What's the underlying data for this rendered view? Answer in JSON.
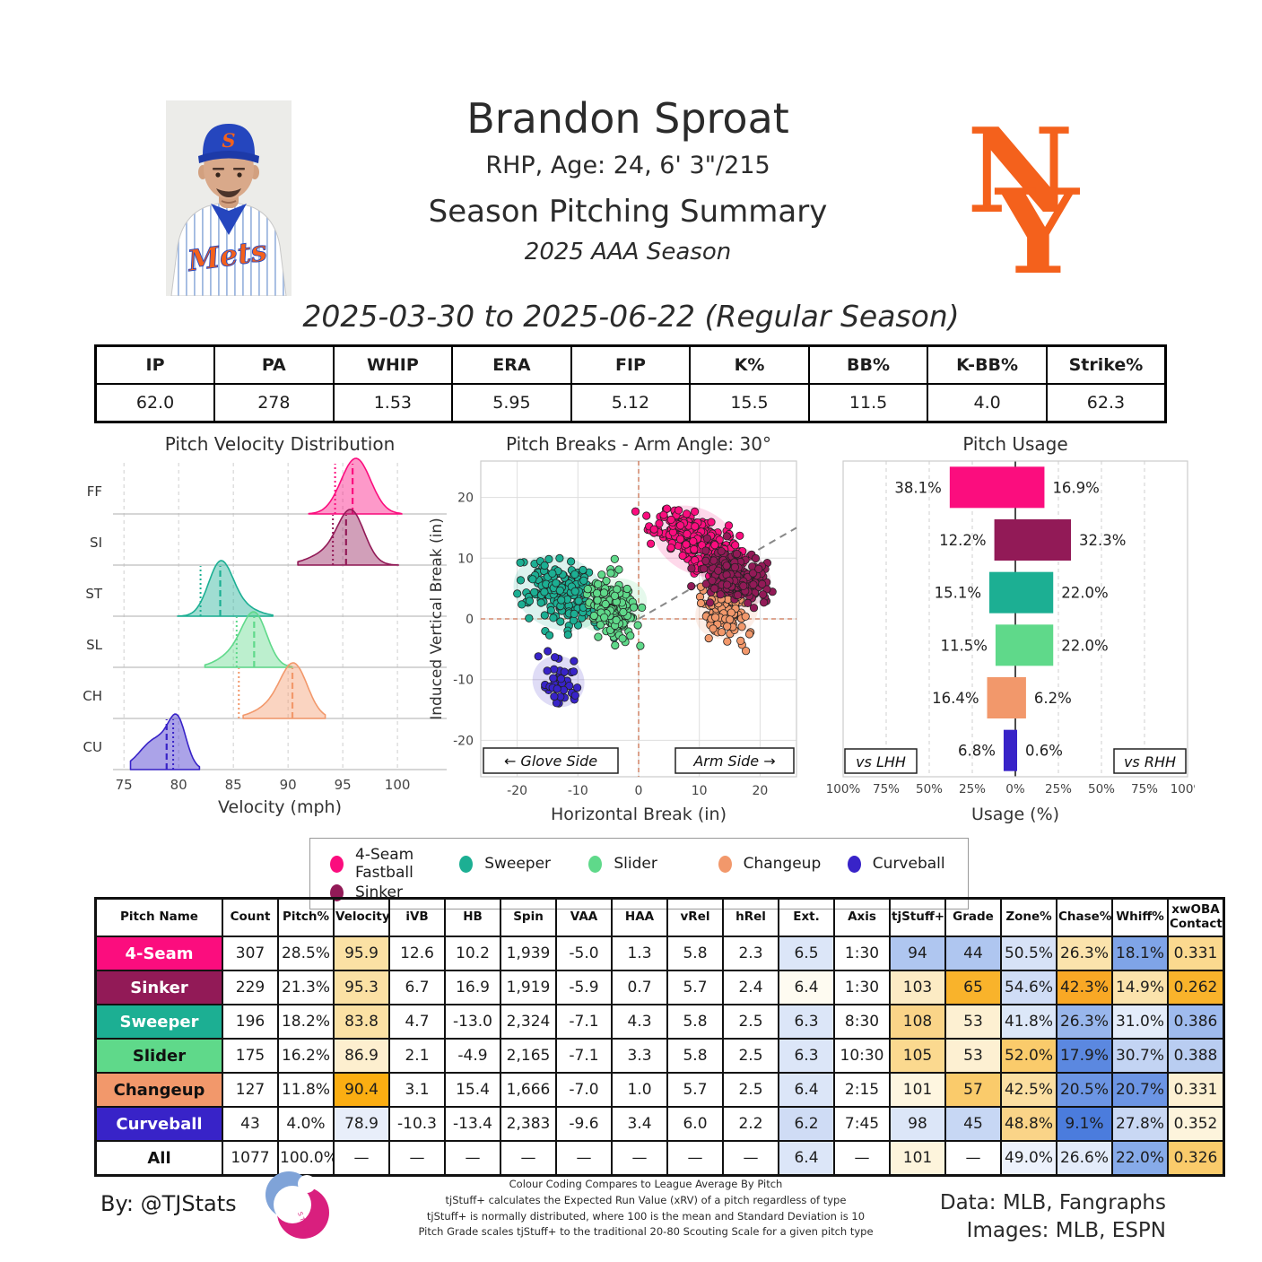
{
  "header": {
    "player_name": "Brandon Sproat",
    "player_details": "RHP, Age: 24, 6' 3\"/215",
    "summary_title": "Season Pitching Summary",
    "season_label": "2025 AAA Season",
    "date_range": "2025-03-30 to 2025-06-22 (Regular Season)",
    "team": "New York Mets"
  },
  "summary_table": {
    "columns": [
      "IP",
      "PA",
      "WHIP",
      "ERA",
      "FIP",
      "K%",
      "BB%",
      "K-BB%",
      "Strike%"
    ],
    "values": [
      "62.0",
      "278",
      "1.53",
      "5.95",
      "5.12",
      "15.5",
      "11.5",
      "4.0",
      "62.3"
    ]
  },
  "colors": {
    "fourseam": "#FB0D7E",
    "sinker": "#921A57",
    "sweeper": "#1CAF93",
    "slider": "#5FD98A",
    "changeup": "#F2986B",
    "curveball": "#3823C8",
    "mets_orange": "#F4611C",
    "crosshair": "#C9714F",
    "grid": "#d6d6d6"
  },
  "chart_data": [
    {
      "type": "ridgeline",
      "title": "Pitch Velocity Distribution",
      "xlabel": "Velocity (mph)",
      "xlim": [
        74,
        104.5
      ],
      "xticks": [
        75,
        80,
        85,
        90,
        95,
        100
      ],
      "rows": [
        {
          "label": "FF",
          "pitch": "4-Seam Fastball",
          "color": "#FB0D7E",
          "mean": 95.9,
          "league_avg": 94.3,
          "range": [
            91.9,
            100.4
          ],
          "components": [
            {
              "x": 96.2,
              "sd": 1.35,
              "a": 1
            }
          ]
        },
        {
          "label": "SI",
          "pitch": "Sinker",
          "color": "#921A57",
          "mean": 95.3,
          "league_avg": 94.1,
          "range": [
            90.9,
            100.1
          ],
          "components": [
            {
              "x": 95.8,
              "sd": 1.2,
              "a": 1
            },
            {
              "x": 93.8,
              "sd": 1.8,
              "a": 0.25
            }
          ]
        },
        {
          "label": "ST",
          "pitch": "Sweeper",
          "color": "#1CAF93",
          "mean": 83.8,
          "league_avg": 82.0,
          "range": [
            79.9,
            88.6
          ],
          "components": [
            {
              "x": 83.8,
              "sd": 1.1,
              "a": 1
            },
            {
              "x": 85.5,
              "sd": 1.5,
              "a": 0.2
            }
          ]
        },
        {
          "label": "SL",
          "pitch": "Slider",
          "color": "#5FD98A",
          "mean": 86.9,
          "league_avg": 85.3,
          "range": [
            82.4,
            90.4
          ],
          "components": [
            {
              "x": 87.0,
              "sd": 1.1,
              "a": 1
            },
            {
              "x": 85.5,
              "sd": 1.6,
              "a": 0.35
            }
          ]
        },
        {
          "label": "CH",
          "pitch": "Changeup",
          "color": "#F2986B",
          "mean": 90.4,
          "league_avg": 85.5,
          "range": [
            85.9,
            93.4
          ],
          "components": [
            {
              "x": 90.6,
              "sd": 1.2,
              "a": 1
            },
            {
              "x": 89.0,
              "sd": 1.8,
              "a": 0.3
            }
          ]
        },
        {
          "label": "CU",
          "pitch": "Curveball",
          "color": "#3823C8",
          "mean": 78.9,
          "league_avg": 79.5,
          "range": [
            75.6,
            81.9
          ],
          "components": [
            {
              "x": 78.0,
              "sd": 1.5,
              "a": 0.75
            },
            {
              "x": 79.9,
              "sd": 0.8,
              "a": 1
            }
          ]
        }
      ]
    },
    {
      "type": "scatter",
      "title": "Pitch Breaks - Arm Angle: 30°",
      "xlabel": "Horizontal Break (in)",
      "ylabel": "Induced Vertical Break (in)",
      "xlim": [
        -26,
        26
      ],
      "ylim": [
        -26,
        26
      ],
      "ticks": [
        -20,
        -10,
        0,
        10,
        20
      ],
      "arm_angle_deg": 30,
      "glove_side_label": "← Glove Side",
      "arm_side_label": "Arm Side →",
      "clusters": [
        {
          "pitch": "4-Seam",
          "color": "#FB0D7E",
          "n": 307,
          "cx": 9.5,
          "cy": 12.8,
          "sx": 3.3,
          "sy": 2.3,
          "rho": -0.55
        },
        {
          "pitch": "Sweeper",
          "color": "#1CAF93",
          "n": 196,
          "cx": -13.0,
          "cy": 4.3,
          "sx": 3.4,
          "sy": 2.6,
          "rho": -0.25
        },
        {
          "pitch": "Slider",
          "color": "#5FD98A",
          "n": 175,
          "cx": -4.5,
          "cy": 2.2,
          "sx": 1.9,
          "sy": 2.6,
          "rho": -0.2
        },
        {
          "pitch": "Changeup",
          "color": "#F2986B",
          "n": 127,
          "cx": 14.5,
          "cy": 1.2,
          "sx": 1.9,
          "sy": 2.3,
          "rho": -0.2
        },
        {
          "pitch": "Sinker",
          "color": "#921A57",
          "n": 229,
          "cx": 16.0,
          "cy": 7.0,
          "sx": 2.6,
          "sy": 2.1,
          "rho": -0.3
        },
        {
          "pitch": "Curveball",
          "color": "#3823C8",
          "n": 43,
          "cx": -13.2,
          "cy": -10.3,
          "sx": 1.9,
          "sy": 1.8,
          "rho": -0.3
        }
      ]
    },
    {
      "type": "diverging_bar",
      "title": "Pitch Usage",
      "xlabel": "Usage (%)",
      "xtick_labels": [
        "100%",
        "75%",
        "50%",
        "25%",
        "0%",
        "25%",
        "50%",
        "75%",
        "100%"
      ],
      "left_box_label": "vs LHH",
      "right_box_label": "vs RHH",
      "rows": [
        {
          "pitch": "4-Seam",
          "color": "#FB0D7E",
          "lhh": 38.1,
          "rhh": 16.9
        },
        {
          "pitch": "Sinker",
          "color": "#921A57",
          "lhh": 12.2,
          "rhh": 32.3
        },
        {
          "pitch": "Sweeper",
          "color": "#1CAF93",
          "lhh": 15.1,
          "rhh": 22.0
        },
        {
          "pitch": "Slider",
          "color": "#5FD98A",
          "lhh": 11.5,
          "rhh": 22.0
        },
        {
          "pitch": "Changeup",
          "color": "#F2986B",
          "lhh": 16.4,
          "rhh": 6.2
        },
        {
          "pitch": "Curveball",
          "color": "#3823C8",
          "lhh": 6.8,
          "rhh": 0.6
        }
      ]
    }
  ],
  "legend": {
    "items": [
      {
        "label": "4-Seam Fastball",
        "color": "#FB0D7E"
      },
      {
        "label": "Sweeper",
        "color": "#1CAF93"
      },
      {
        "label": "Slider",
        "color": "#5FD98A"
      },
      {
        "label": "Changeup",
        "color": "#F2986B"
      },
      {
        "label": "Curveball",
        "color": "#3823C8"
      },
      {
        "label": "Sinker",
        "color": "#921A57"
      }
    ]
  },
  "pitch_table": {
    "headers": [
      "Pitch Name",
      "Count",
      "Pitch%",
      "Velocity",
      "iVB",
      "HB",
      "Spin",
      "VAA",
      "HAA",
      "vRel",
      "hRel",
      "Ext.",
      "Axis",
      "tjStuff+",
      "Grade",
      "Zone%",
      "Chase%",
      "Whiff%",
      "xwOBA\nContact"
    ],
    "rows": [
      {
        "name": "4-Seam",
        "bg": "#FB0D7E",
        "fg": "#ffffff",
        "cells": [
          [
            "307"
          ],
          [
            "28.5%"
          ],
          [
            "95.9",
            "#FBE1A4"
          ],
          [
            "12.6"
          ],
          [
            "10.2"
          ],
          [
            "1,939"
          ],
          [
            "-5.0"
          ],
          [
            "1.3"
          ],
          [
            "5.8"
          ],
          [
            "2.3"
          ],
          [
            "6.5",
            "#DCE6F8"
          ],
          [
            "1:30"
          ],
          [
            "94",
            "#AFC6F0"
          ],
          [
            "44",
            "#AFC6F0"
          ],
          [
            "50.5%",
            "#D7E2F7"
          ],
          [
            "26.3%",
            "#FBE3AC"
          ],
          [
            "18.1%",
            "#7FA4E7"
          ],
          [
            "0.331",
            "#FBD98F"
          ]
        ]
      },
      {
        "name": "Sinker",
        "bg": "#921A57",
        "fg": "#ffffff",
        "cells": [
          [
            "229"
          ],
          [
            "21.3%"
          ],
          [
            "95.3",
            "#FBE1A4"
          ],
          [
            "6.7"
          ],
          [
            "16.9"
          ],
          [
            "1,919"
          ],
          [
            "-5.9"
          ],
          [
            "0.7"
          ],
          [
            "5.7"
          ],
          [
            "2.4"
          ],
          [
            "6.4",
            "#FEFBF1"
          ],
          [
            "1:30"
          ],
          [
            "103",
            "#FCEBC4"
          ],
          [
            "65",
            "#F9B32B"
          ],
          [
            "54.6%",
            "#D0DDF6"
          ],
          [
            "42.3%",
            "#F9A825"
          ],
          [
            "14.9%",
            "#FBE3AC"
          ],
          [
            "0.262",
            "#F9B32B"
          ]
        ]
      },
      {
        "name": "Sweeper",
        "bg": "#1CAF93",
        "fg": "#ffffff",
        "cells": [
          [
            "196"
          ],
          [
            "18.2%"
          ],
          [
            "83.8",
            "#FBE1A4"
          ],
          [
            "4.7"
          ],
          [
            "-13.0"
          ],
          [
            "2,324"
          ],
          [
            "-7.1"
          ],
          [
            "4.3"
          ],
          [
            "5.8"
          ],
          [
            "2.5"
          ],
          [
            "6.3",
            "#DCE6F8"
          ],
          [
            "8:30"
          ],
          [
            "108",
            "#FAD488"
          ],
          [
            "53",
            "#FDF0D2"
          ],
          [
            "41.8%",
            "#DCE7F8"
          ],
          [
            "26.3%",
            "#98B6EC"
          ],
          [
            "31.0%",
            "#E4ECFA"
          ],
          [
            "0.386",
            "#9FBBEE"
          ]
        ]
      },
      {
        "name": "Slider",
        "bg": "#5FD98A",
        "fg": "#111111",
        "cells": [
          [
            "175"
          ],
          [
            "16.2%"
          ],
          [
            "86.9",
            "#FDEFCF"
          ],
          [
            "2.1"
          ],
          [
            "-4.9"
          ],
          [
            "2,165"
          ],
          [
            "-7.1"
          ],
          [
            "3.3"
          ],
          [
            "5.8"
          ],
          [
            "2.5"
          ],
          [
            "6.3",
            "#DCE6F8"
          ],
          [
            "10:30"
          ],
          [
            "105",
            "#FBD98F"
          ],
          [
            "53",
            "#FDF0D2"
          ],
          [
            "52.0%",
            "#FACB6B"
          ],
          [
            "17.9%",
            "#5B88E0"
          ],
          [
            "30.7%",
            "#C3D4F3"
          ],
          [
            "0.388",
            "#B9CDF1"
          ]
        ]
      },
      {
        "name": "Changeup",
        "bg": "#F2986B",
        "fg": "#111111",
        "cells": [
          [
            "127"
          ],
          [
            "11.8%"
          ],
          [
            "90.4",
            "#FBAE12"
          ],
          [
            "3.1"
          ],
          [
            "15.4"
          ],
          [
            "1,666"
          ],
          [
            "-7.0"
          ],
          [
            "1.0"
          ],
          [
            "5.7"
          ],
          [
            "2.5"
          ],
          [
            "6.4",
            "#DCE6F8"
          ],
          [
            "2:15"
          ],
          [
            "101",
            "#FEF6E0"
          ],
          [
            "57",
            "#FACB6B"
          ],
          [
            "42.5%",
            "#FBDFA2"
          ],
          [
            "20.5%",
            "#6C95E4"
          ],
          [
            "20.7%",
            "#6C95E4"
          ],
          [
            "0.331",
            "#FDF0D2"
          ]
        ]
      },
      {
        "name": "Curveball",
        "bg": "#3823C8",
        "fg": "#ffffff",
        "cells": [
          [
            "43"
          ],
          [
            "4.0%"
          ],
          [
            "78.9",
            "#E8EEFA"
          ],
          [
            "-10.3"
          ],
          [
            "-13.4"
          ],
          [
            "2,383"
          ],
          [
            "-9.6"
          ],
          [
            "3.4"
          ],
          [
            "6.0"
          ],
          [
            "2.2"
          ],
          [
            "6.2",
            "#CFDCF5"
          ],
          [
            "7:45"
          ],
          [
            "98",
            "#DCE6F8"
          ],
          [
            "45",
            "#C7D7F4"
          ],
          [
            "48.8%",
            "#FAD488"
          ],
          [
            "9.1%",
            "#4B7CDD"
          ],
          [
            "27.8%",
            "#C9D8F4"
          ],
          [
            "0.352",
            "#FDF4DC"
          ]
        ]
      },
      {
        "name": "All",
        "bg": "#ffffff",
        "fg": "#111111",
        "cells": [
          [
            "1077"
          ],
          [
            "100.0%"
          ],
          [
            "—"
          ],
          [
            "—"
          ],
          [
            "—"
          ],
          [
            "—"
          ],
          [
            "—"
          ],
          [
            "—"
          ],
          [
            "—"
          ],
          [
            "—"
          ],
          [
            "6.4",
            "#DCE6F8"
          ],
          [
            "—"
          ],
          [
            "101",
            "#FDF4DC"
          ],
          [
            "—"
          ],
          [
            "49.0%",
            "#EDF2FC"
          ],
          [
            "26.6%",
            "#E3EBFA"
          ],
          [
            "22.0%",
            "#87ABE9"
          ],
          [
            "0.326",
            "#FACB6B"
          ]
        ]
      }
    ]
  },
  "footer": {
    "by_line": "By: @TJStats",
    "notes": [
      "Colour Coding Compares to League Average By Pitch",
      "tjStuff+ calculates the Expected Run Value (xRV) of a pitch regardless of type",
      "tjStuff+ is normally distributed, where 100 is the mean and Standard Deviation is 10",
      "Pitch Grade scales tjStuff+ to the traditional 20-80 Scouting Scale for a given pitch type"
    ],
    "data_credit": "Data: MLB, Fangraphs",
    "images_credit": "Images: MLB, ESPN"
  }
}
